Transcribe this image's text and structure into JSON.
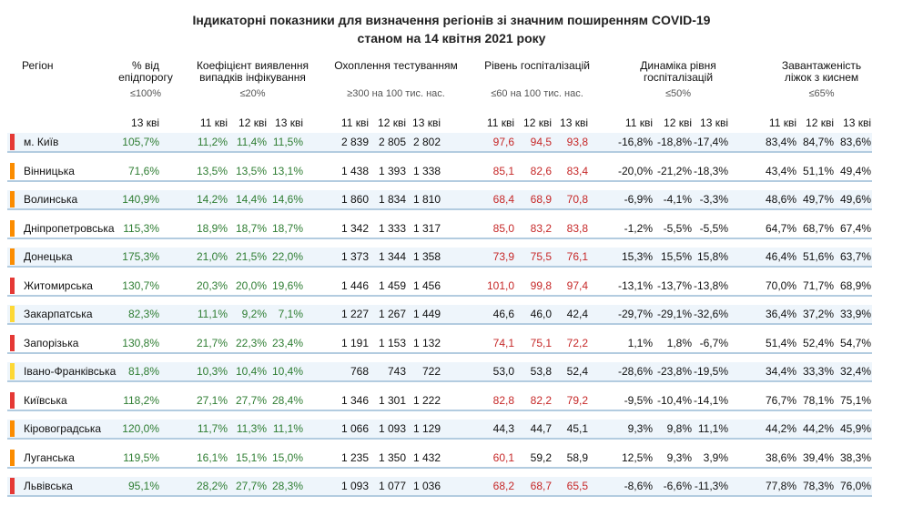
{
  "title_line1": "Індикаторні показники для визначення регіонів зі значним поширенням COVID-19",
  "title_line2": "станом на 14 квітня 2021 року",
  "headers": {
    "region": "Регіон",
    "epid": [
      "% від",
      "епідпорогу"
    ],
    "coef": [
      "Коефіцієнт виявлення",
      "випадків інфікування"
    ],
    "test": [
      "Охоплення тестуванням"
    ],
    "hosp": [
      "Рівень госпіталізацій"
    ],
    "dyn": [
      "Динаміка рівня",
      "госпіталізацій"
    ],
    "load": [
      "Завантаженість",
      "ліжок з киснем"
    ]
  },
  "thresholds": {
    "epid": "≤100%",
    "coef": "≤20%",
    "test": "≥300 на 100 тис. нас.",
    "hosp": "≤60 на 100 тис. нас.",
    "dyn": "≤50%",
    "load": "≤65%"
  },
  "day_headers": {
    "epid": [
      "13 кві"
    ],
    "coef": [
      "11 кві",
      "12 кві",
      "13 кві"
    ],
    "test": [
      "11 кві",
      "12 кві",
      "13 кві"
    ],
    "hosp": [
      "11 кві",
      "12 кві",
      "13 кві"
    ],
    "dyn": [
      "11 кві",
      "12 кві",
      "13 кві"
    ],
    "load": [
      "11 кві",
      "12 кві",
      "13 кві"
    ]
  },
  "status_colors": {
    "red": "#e53935",
    "orange": "#fb8c00",
    "yellow": "#fdd835"
  },
  "value_colors": {
    "green": "#2e7d32",
    "red": "#c62828",
    "black": "#111111"
  },
  "rows": [
    {
      "region": "м. Київ",
      "status": "red",
      "epid": "105,7%",
      "coef": [
        "11,2%",
        "11,4%",
        "11,5%"
      ],
      "test": [
        "2 839",
        "2 805",
        "2 802"
      ],
      "hosp": [
        "97,6",
        "94,5",
        "93,8"
      ],
      "dyn": [
        "-16,8%",
        "-18,8%",
        "-17,4%"
      ],
      "load": [
        "83,4%",
        "84,7%",
        "83,6%"
      ]
    },
    {
      "region": "Вінницька",
      "status": "orange",
      "epid": "71,6%",
      "coef": [
        "13,5%",
        "13,5%",
        "13,1%"
      ],
      "test": [
        "1 438",
        "1 393",
        "1 338"
      ],
      "hosp": [
        "85,1",
        "82,6",
        "83,4"
      ],
      "dyn": [
        "-20,0%",
        "-21,2%",
        "-18,3%"
      ],
      "load": [
        "43,4%",
        "51,1%",
        "49,4%"
      ]
    },
    {
      "region": "Волинська",
      "status": "orange",
      "epid": "140,9%",
      "coef": [
        "14,2%",
        "14,4%",
        "14,6%"
      ],
      "test": [
        "1 860",
        "1 834",
        "1 810"
      ],
      "hosp": [
        "68,4",
        "68,9",
        "70,8"
      ],
      "dyn": [
        "-6,9%",
        "-4,1%",
        "-3,3%"
      ],
      "load": [
        "48,6%",
        "49,7%",
        "49,6%"
      ]
    },
    {
      "region": "Дніпропетровська",
      "status": "orange",
      "epid": "115,3%",
      "coef": [
        "18,9%",
        "18,7%",
        "18,7%"
      ],
      "test": [
        "1 342",
        "1 333",
        "1 317"
      ],
      "hosp": [
        "85,0",
        "83,2",
        "83,8"
      ],
      "dyn": [
        "-1,2%",
        "-5,5%",
        "-5,5%"
      ],
      "load": [
        "64,7%",
        "68,7%",
        "67,4%"
      ]
    },
    {
      "region": "Донецька",
      "status": "orange",
      "epid": "175,3%",
      "coef": [
        "21,0%",
        "21,5%",
        "22,0%"
      ],
      "test": [
        "1 373",
        "1 344",
        "1 358"
      ],
      "hosp": [
        "73,9",
        "75,5",
        "76,1"
      ],
      "dyn": [
        "15,3%",
        "15,5%",
        "15,8%"
      ],
      "load": [
        "46,4%",
        "51,6%",
        "63,7%"
      ]
    },
    {
      "region": "Житомирська",
      "status": "red",
      "epid": "130,7%",
      "coef": [
        "20,3%",
        "20,0%",
        "19,6%"
      ],
      "test": [
        "1 446",
        "1 459",
        "1 456"
      ],
      "hosp": [
        "101,0",
        "99,8",
        "97,4"
      ],
      "dyn": [
        "-13,1%",
        "-13,7%",
        "-13,8%"
      ],
      "load": [
        "70,0%",
        "71,7%",
        "68,9%"
      ]
    },
    {
      "region": "Закарпатська",
      "status": "yellow",
      "epid": "82,3%",
      "coef": [
        "11,1%",
        "9,2%",
        "7,1%"
      ],
      "test": [
        "1 227",
        "1 267",
        "1 449"
      ],
      "hosp": [
        "46,6",
        "46,0",
        "42,4"
      ],
      "dyn": [
        "-29,7%",
        "-29,1%",
        "-32,6%"
      ],
      "load": [
        "36,4%",
        "37,2%",
        "33,9%"
      ]
    },
    {
      "region": "Запорізька",
      "status": "red",
      "epid": "130,8%",
      "coef": [
        "21,7%",
        "22,3%",
        "23,4%"
      ],
      "test": [
        "1 191",
        "1 153",
        "1 132"
      ],
      "hosp": [
        "74,1",
        "75,1",
        "72,2"
      ],
      "dyn": [
        "1,1%",
        "1,8%",
        "-6,7%"
      ],
      "load": [
        "51,4%",
        "52,4%",
        "54,7%"
      ]
    },
    {
      "region": "Івано-Франківська",
      "status": "yellow",
      "epid": "81,8%",
      "coef": [
        "10,3%",
        "10,4%",
        "10,4%"
      ],
      "test": [
        "768",
        "743",
        "722"
      ],
      "hosp": [
        "53,0",
        "53,8",
        "52,4"
      ],
      "dyn": [
        "-28,6%",
        "-23,8%",
        "-19,5%"
      ],
      "load": [
        "34,4%",
        "33,3%",
        "32,4%"
      ]
    },
    {
      "region": "Київська",
      "status": "red",
      "epid": "118,2%",
      "coef": [
        "27,1%",
        "27,7%",
        "28,4%"
      ],
      "test": [
        "1 346",
        "1 301",
        "1 222"
      ],
      "hosp": [
        "82,8",
        "82,2",
        "79,2"
      ],
      "dyn": [
        "-9,5%",
        "-10,4%",
        "-14,1%"
      ],
      "load": [
        "76,7%",
        "78,1%",
        "75,1%"
      ]
    },
    {
      "region": "Кіровоградська",
      "status": "orange",
      "epid": "120,0%",
      "coef": [
        "11,7%",
        "11,3%",
        "11,1%"
      ],
      "test": [
        "1 066",
        "1 093",
        "1 129"
      ],
      "hosp": [
        "44,3",
        "44,7",
        "45,1"
      ],
      "dyn": [
        "9,3%",
        "9,8%",
        "11,1%"
      ],
      "load": [
        "44,2%",
        "44,2%",
        "45,9%"
      ]
    },
    {
      "region": "Луганська",
      "status": "orange",
      "epid": "119,5%",
      "coef": [
        "16,1%",
        "15,1%",
        "15,0%"
      ],
      "test": [
        "1 235",
        "1 350",
        "1 432"
      ],
      "hosp": [
        "60,1",
        "59,2",
        "58,9"
      ],
      "dyn": [
        "12,5%",
        "9,3%",
        "3,9%"
      ],
      "load": [
        "38,6%",
        "39,4%",
        "38,3%"
      ]
    },
    {
      "region": "Львівська",
      "status": "red",
      "epid": "95,1%",
      "coef": [
        "28,2%",
        "27,7%",
        "28,3%"
      ],
      "test": [
        "1 093",
        "1 077",
        "1 036"
      ],
      "hosp": [
        "68,2",
        "68,7",
        "65,5"
      ],
      "dyn": [
        "-8,6%",
        "-6,6%",
        "-11,3%"
      ],
      "load": [
        "77,8%",
        "78,3%",
        "76,0%"
      ]
    }
  ],
  "value_color_map": {
    "epid": [
      "g",
      "g",
      "g",
      "g",
      "g",
      "g",
      "g",
      "g",
      "g",
      "g",
      "g",
      "g",
      "g"
    ],
    "coef": [
      [
        "g",
        "g",
        "g"
      ],
      [
        "g",
        "g",
        "g"
      ],
      [
        "g",
        "g",
        "g"
      ],
      [
        "g",
        "g",
        "g"
      ],
      [
        "g",
        "g",
        "g"
      ],
      [
        "g",
        "g",
        "g"
      ],
      [
        "g",
        "g",
        "g"
      ],
      [
        "g",
        "g",
        "g"
      ],
      [
        "g",
        "g",
        "g"
      ],
      [
        "g",
        "g",
        "g"
      ],
      [
        "g",
        "g",
        "g"
      ],
      [
        "g",
        "g",
        "g"
      ],
      [
        "g",
        "g",
        "g"
      ]
    ],
    "test": [
      [
        "k",
        "k",
        "k"
      ],
      [
        "k",
        "k",
        "k"
      ],
      [
        "k",
        "k",
        "k"
      ],
      [
        "k",
        "k",
        "k"
      ],
      [
        "k",
        "k",
        "k"
      ],
      [
        "k",
        "k",
        "k"
      ],
      [
        "k",
        "k",
        "k"
      ],
      [
        "k",
        "k",
        "k"
      ],
      [
        "k",
        "k",
        "k"
      ],
      [
        "k",
        "k",
        "k"
      ],
      [
        "k",
        "k",
        "k"
      ],
      [
        "k",
        "k",
        "k"
      ],
      [
        "k",
        "k",
        "k"
      ]
    ],
    "hosp": [
      [
        "r",
        "r",
        "r"
      ],
      [
        "r",
        "r",
        "r"
      ],
      [
        "r",
        "r",
        "r"
      ],
      [
        "r",
        "r",
        "r"
      ],
      [
        "r",
        "r",
        "r"
      ],
      [
        "r",
        "r",
        "r"
      ],
      [
        "k",
        "k",
        "k"
      ],
      [
        "r",
        "r",
        "r"
      ],
      [
        "k",
        "k",
        "k"
      ],
      [
        "r",
        "r",
        "r"
      ],
      [
        "k",
        "k",
        "k"
      ],
      [
        "r",
        "k",
        "k"
      ],
      [
        "r",
        "r",
        "r"
      ]
    ],
    "dyn": [
      [
        "k",
        "k",
        "k"
      ],
      [
        "k",
        "k",
        "k"
      ],
      [
        "k",
        "k",
        "k"
      ],
      [
        "k",
        "k",
        "k"
      ],
      [
        "k",
        "k",
        "k"
      ],
      [
        "k",
        "k",
        "k"
      ],
      [
        "k",
        "k",
        "k"
      ],
      [
        "k",
        "k",
        "k"
      ],
      [
        "k",
        "k",
        "k"
      ],
      [
        "k",
        "k",
        "k"
      ],
      [
        "k",
        "k",
        "k"
      ],
      [
        "k",
        "k",
        "k"
      ],
      [
        "k",
        "k",
        "k"
      ]
    ],
    "load": [
      [
        "k",
        "k",
        "k"
      ],
      [
        "k",
        "k",
        "k"
      ],
      [
        "k",
        "k",
        "k"
      ],
      [
        "k",
        "k",
        "k"
      ],
      [
        "k",
        "k",
        "k"
      ],
      [
        "k",
        "k",
        "k"
      ],
      [
        "k",
        "k",
        "k"
      ],
      [
        "k",
        "k",
        "k"
      ],
      [
        "k",
        "k",
        "k"
      ],
      [
        "k",
        "k",
        "k"
      ],
      [
        "k",
        "k",
        "k"
      ],
      [
        "k",
        "k",
        "k"
      ],
      [
        "k",
        "k",
        "k"
      ]
    ]
  }
}
